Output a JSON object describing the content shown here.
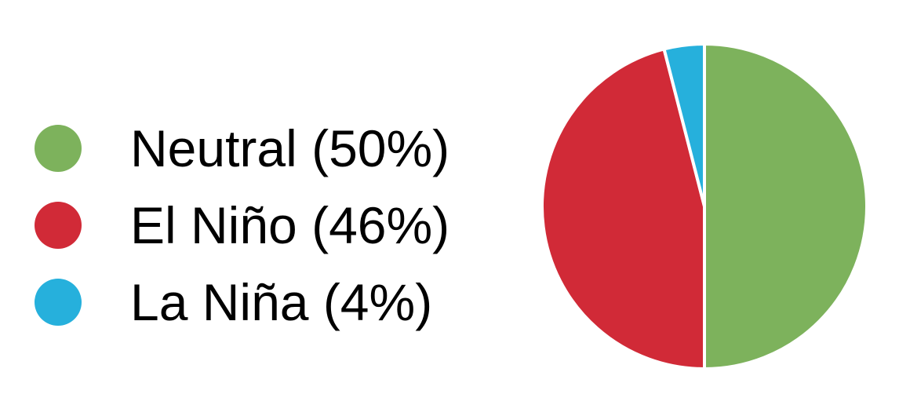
{
  "chart_data": {
    "type": "pie",
    "title": "",
    "legend_position": "left",
    "slices": [
      {
        "label": "Neutral (50%)",
        "name": "Neutral",
        "value": 50,
        "color": "#7DB25C"
      },
      {
        "label": "El Niño (46%)",
        "name": "El Niño",
        "value": 46,
        "color": "#D12A37"
      },
      {
        "label": "La Niña (4%)",
        "name": "La Niña",
        "value": 4,
        "color": "#26B0DC"
      }
    ],
    "start_angle_deg": 0,
    "direction": "clockwise",
    "slice_border_color": "#ffffff"
  }
}
